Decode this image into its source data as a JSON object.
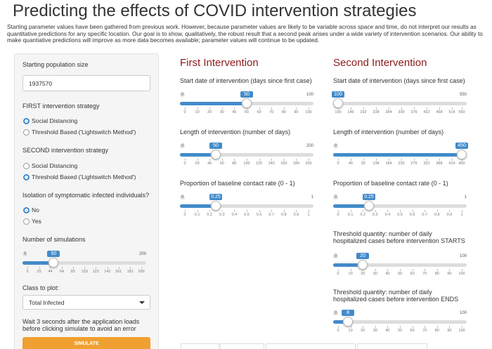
{
  "header": {
    "title": "Predicting the effects of COVID intervention strategies",
    "description": "Starting parameter values have been gathered from previous work. However, because parameter values are likely to be variable across space and time, do not interpret our results as quantitative predictions for any specific location. Our goal is to show, qualitatively, the robust result that a second peak arises under a wide variety of intervention scenarios. Our ability to make quantiative predictions will improve as more data becomes available; parameter values will continue to be updated."
  },
  "sidebar": {
    "population": {
      "label": "Starting population size",
      "value": "1937570"
    },
    "first_strategy": {
      "label": "FIRST intervention strategy",
      "options": [
        "Social Distancing",
        "Threshold Based ('Lightswitch Method')"
      ],
      "selected": 0
    },
    "second_strategy": {
      "label": "SECOND intervention strategy",
      "options": [
        "Social Distancing",
        "Threshold Based ('Lightswitch Method')"
      ],
      "selected": 1
    },
    "isolation": {
      "label": "Isolation of symptomatic infected individuals?",
      "options": [
        "No",
        "Yes"
      ],
      "selected": 0
    },
    "simulations": {
      "label": "Number of simulations",
      "min": 5,
      "max": 200,
      "value": 50,
      "ticks": [
        5,
        25,
        44,
        64,
        83,
        103,
        122,
        142,
        161,
        181,
        200
      ]
    },
    "class_to_plot": {
      "label": "Class to plot:",
      "value": "Total Infected"
    },
    "note": "Wait 3 seconds after the application loads before clicking simulate to avoid an error",
    "button": "SIMULATE"
  },
  "first": {
    "heading": "First Intervention",
    "sliders": [
      {
        "label": "Start date of intervention (days since first case)",
        "min": 0,
        "max": 100,
        "value": 50,
        "ticks": [
          0,
          10,
          20,
          30,
          40,
          50,
          60,
          70,
          80,
          90,
          100
        ]
      },
      {
        "label": "Length of intervention (number of days)",
        "min": 0,
        "max": 200,
        "value": 50,
        "ticks": [
          0,
          20,
          40,
          60,
          80,
          100,
          120,
          140,
          160,
          180,
          200
        ]
      },
      {
        "label": "Proportion of baseline contact rate (0 - 1)",
        "min": 0,
        "max": 1,
        "value": 0.25,
        "ticks": [
          0,
          0.1,
          0.2,
          0.3,
          0.4,
          0.5,
          0.6,
          0.7,
          0.8,
          0.9,
          1
        ]
      }
    ]
  },
  "second": {
    "heading": "Second Intervention",
    "sliders": [
      {
        "label": "Start date of intervention (days since first case)",
        "min": 100,
        "max": 550,
        "value": 100,
        "ticks": [
          100,
          146,
          192,
          238,
          284,
          330,
          376,
          422,
          468,
          514,
          550
        ]
      },
      {
        "label": "Length of intervention (number of days)",
        "min": 0,
        "max": 450,
        "value": 450,
        "ticks": [
          0,
          46,
          92,
          138,
          184,
          230,
          276,
          322,
          368,
          414,
          450
        ]
      },
      {
        "label": "Proportion of baseline contact rate (0 - 1)",
        "min": 0,
        "max": 1,
        "value": 0.25,
        "ticks": [
          0,
          0.1,
          0.2,
          0.3,
          0.4,
          0.5,
          0.6,
          0.7,
          0.8,
          0.9,
          1
        ]
      },
      {
        "label": "Threshold quantity: number of daily hospitalized cases before intervention STARTS",
        "min": 0,
        "max": 100,
        "value": 20,
        "ticks": [
          0,
          10,
          20,
          30,
          40,
          50,
          60,
          70,
          80,
          90,
          100
        ]
      },
      {
        "label": "Threshold quantity: number of daily hospitalized cases before intervention ENDS",
        "min": 0,
        "max": 100,
        "value": 8,
        "ticks": [
          0,
          10,
          20,
          30,
          40,
          50,
          60,
          70,
          80,
          90,
          100
        ]
      }
    ]
  }
}
